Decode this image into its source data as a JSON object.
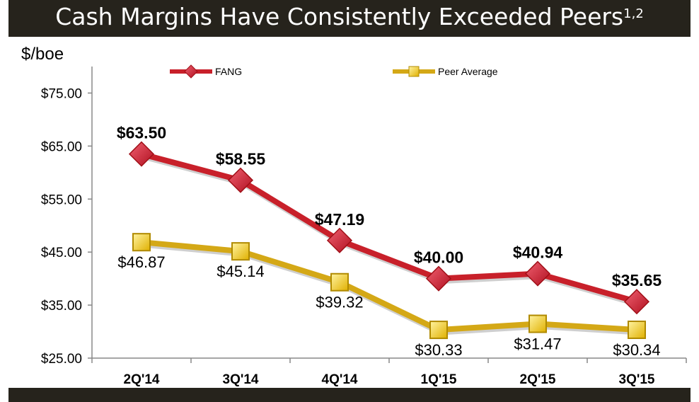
{
  "title": {
    "main": "Cash Margins Have Consistently Exceeded Peers",
    "superscript": "1,2"
  },
  "chart_data": {
    "type": "line",
    "ylabel": "$/boe",
    "categories": [
      "2Q'14",
      "3Q'14",
      "4Q'14",
      "1Q'15",
      "2Q'15",
      "3Q'15"
    ],
    "ylim": [
      25,
      80
    ],
    "yticks": [
      25,
      35,
      45,
      55,
      65,
      75
    ],
    "ytick_labels": [
      "$25.00",
      "$35.00",
      "$45.00",
      "$55.00",
      "$65.00",
      "$75.00"
    ],
    "legend_position": "top",
    "grid": false,
    "series": [
      {
        "name": "FANG",
        "values": [
          63.5,
          58.55,
          47.19,
          40.0,
          40.94,
          35.65
        ],
        "labels": [
          "$63.50",
          "$58.55",
          "$47.19",
          "$40.00",
          "$40.94",
          "$35.65"
        ],
        "color": "#c8202a",
        "marker": "diamond",
        "label_bold": true
      },
      {
        "name": "Peer Average",
        "values": [
          46.87,
          45.14,
          39.32,
          30.33,
          31.47,
          30.34
        ],
        "labels": [
          "$46.87",
          "$45.14",
          "$39.32",
          "$30.33",
          "$31.47",
          "$30.34"
        ],
        "color": "#d4a816",
        "marker": "square",
        "label_bold": false
      }
    ]
  }
}
